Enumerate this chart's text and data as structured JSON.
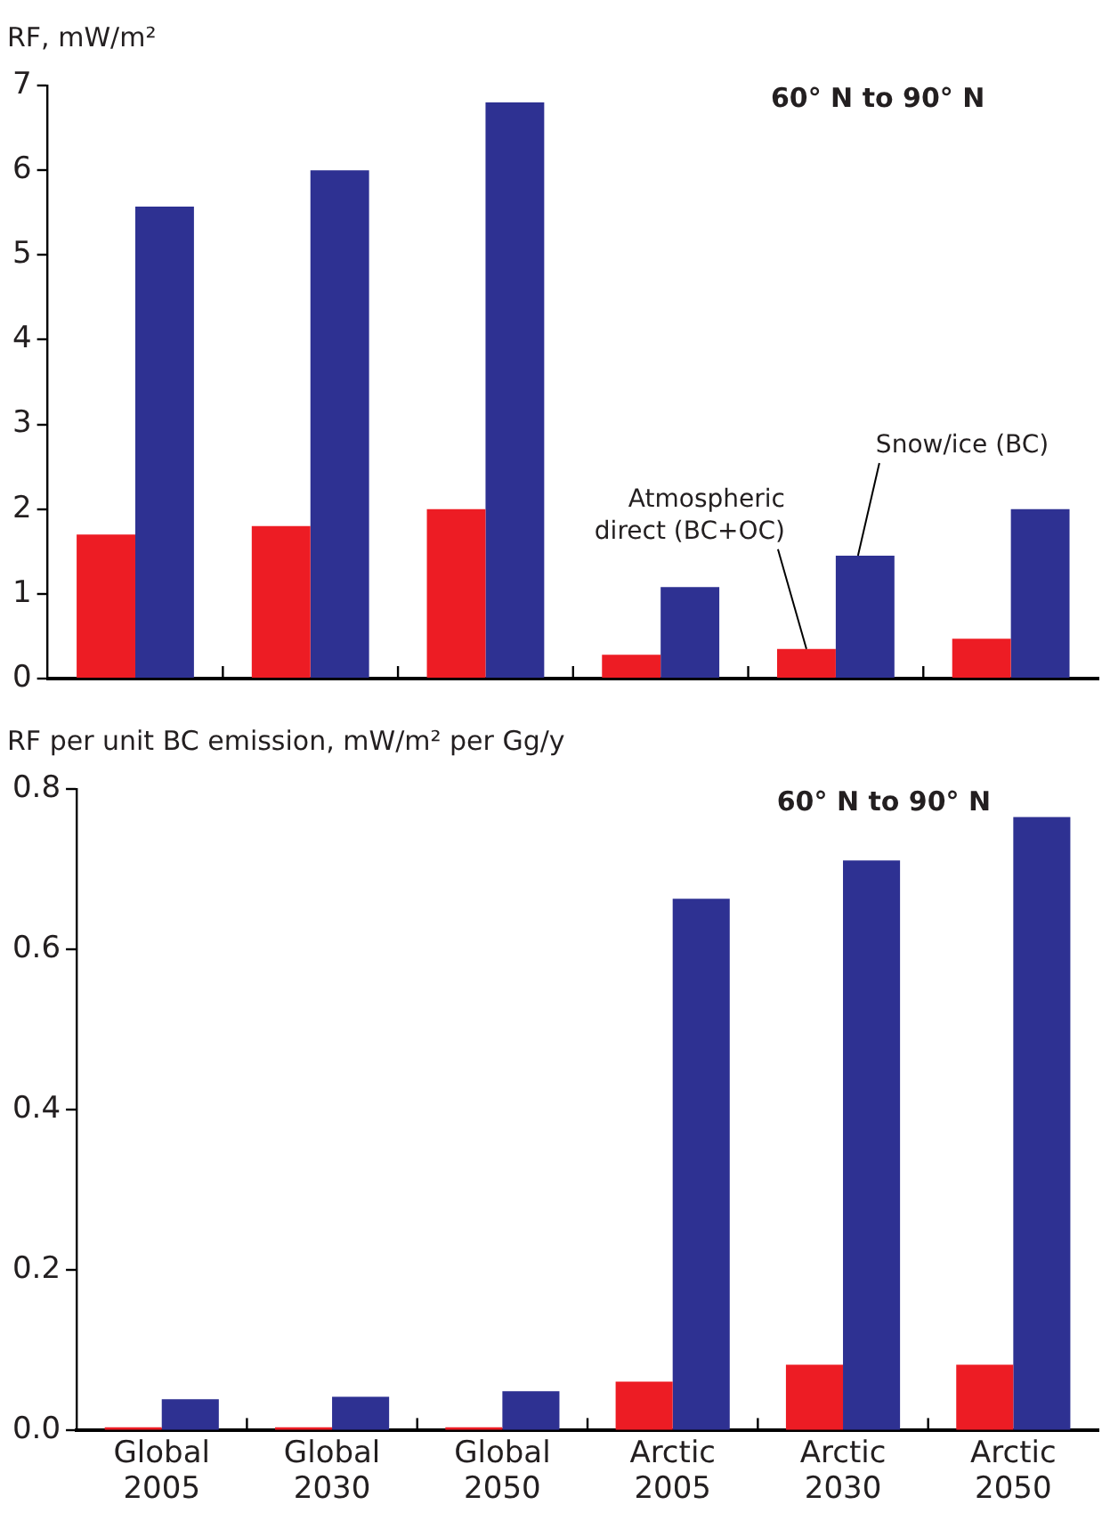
{
  "chart_data": [
    {
      "type": "bar",
      "ylabel": "RF, mW/m²",
      "annotations": [
        "60° N to 90° N"
      ],
      "categories": [
        null,
        null,
        null,
        null,
        null,
        null
      ],
      "series": [
        {
          "name": "Atmospheric direct (BC+OC)",
          "color": "#ed1c24",
          "values": [
            1.7,
            1.8,
            2.0,
            0.28,
            0.35,
            0.47
          ]
        },
        {
          "name": "Snow/ice (BC)",
          "color": "#2e3192",
          "values": [
            5.57,
            6.0,
            6.8,
            1.08,
            1.45,
            2.0
          ]
        }
      ],
      "ylim": [
        0,
        7
      ],
      "yticks": [
        0,
        1,
        2,
        3,
        4,
        5,
        6,
        7
      ],
      "grid": false,
      "legend": false,
      "tick_labels": "y"
    },
    {
      "type": "bar",
      "ylabel": "RF per unit BC emission, mW/m² per Gg/y",
      "annotations": [
        "60° N to 90° N"
      ],
      "categories": [
        "Global 2005",
        "Global 2030",
        "Global 2050",
        "Arctic 2005",
        "Arctic 2030",
        "Arctic 2050"
      ],
      "series": [
        {
          "color": "#ed1c24",
          "values": [
            0.004,
            0.004,
            0.004,
            0.061,
            0.082,
            0.082
          ]
        },
        {
          "color": "#2e3192",
          "values": [
            0.039,
            0.042,
            0.049,
            0.663,
            0.711,
            0.765
          ]
        }
      ],
      "ylim": [
        0,
        0.8
      ],
      "yticks": [
        {
          "value": 0,
          "label": "0.0"
        },
        {
          "value": 0.2,
          "label": "0.2"
        },
        {
          "value": 0.4,
          "label": "0.4"
        },
        {
          "value": 0.6,
          "label": "0.6"
        },
        {
          "value": 0.8,
          "label": "0.8"
        }
      ],
      "grid": false,
      "legend": false
    }
  ]
}
